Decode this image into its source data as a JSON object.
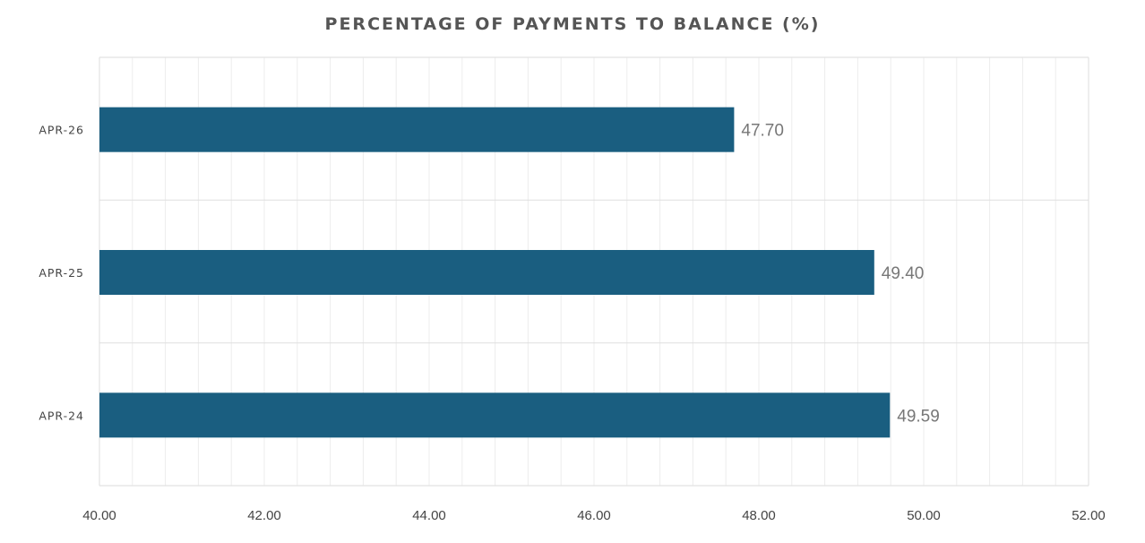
{
  "chart_data": {
    "type": "bar",
    "orientation": "horizontal",
    "title": "PERCENTAGE OF PAYMENTS TO BALANCE (%)",
    "categories": [
      "APR-26",
      "APR-25",
      "APR-24"
    ],
    "values": [
      47.7,
      49.4,
      49.59
    ],
    "data_labels": [
      "47.70",
      "49.40",
      "49.59"
    ],
    "xlim": [
      40,
      52
    ],
    "x_ticks": [
      "40.00",
      "42.00",
      "44.00",
      "46.00",
      "48.00",
      "50.00",
      "52.00"
    ],
    "xlabel": "",
    "ylabel": "",
    "grid": true,
    "legend": false,
    "bar_color": "#1a5e80"
  }
}
